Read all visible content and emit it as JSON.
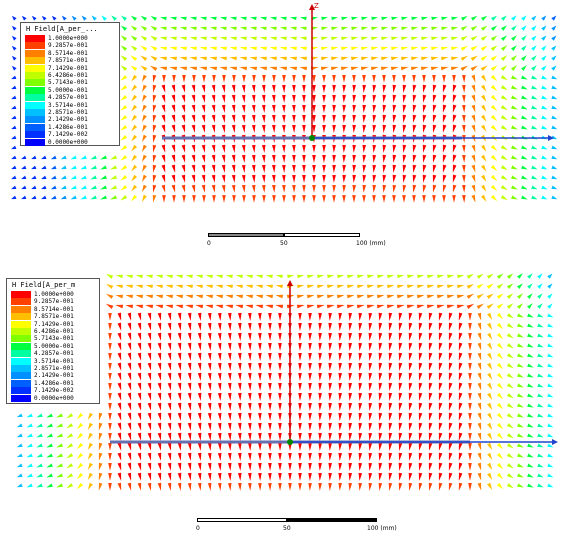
{
  "panels": [
    {
      "id": "top",
      "legend_title": "H Field[A_per_...",
      "axis_label": "Z",
      "scale": {
        "ticks": [
          "0",
          "50",
          "100 (mm)"
        ]
      }
    },
    {
      "id": "bottom",
      "legend_title": "H Field[A_per_m",
      "axis_label": "",
      "scale": {
        "ticks": [
          "0",
          "50",
          "100 (mm)"
        ]
      }
    }
  ],
  "legend": {
    "values": [
      "1.0000e+000",
      "9.2857e-001",
      "8.5714e-001",
      "7.8571e-001",
      "7.1429e-001",
      "6.4286e-001",
      "5.7143e-001",
      "5.0000e-001",
      "4.2857e-001",
      "3.5714e-001",
      "2.8571e-001",
      "2.1429e-001",
      "1.4286e-001",
      "7.1429e-002",
      "0.0000e+000"
    ],
    "colors": [
      "#ff0000",
      "#ff4000",
      "#ff8000",
      "#ffbf00",
      "#ffff00",
      "#bfff00",
      "#80ff00",
      "#00ff40",
      "#00ffa0",
      "#00ffff",
      "#00c0ff",
      "#0090ff",
      "#0060ff",
      "#0030ff",
      "#0000ff"
    ]
  },
  "colors": {
    "axis_x": "#2244cc",
    "axis_z": "#cc0000",
    "conductor": "#6670b0",
    "origin": "#008800"
  }
}
